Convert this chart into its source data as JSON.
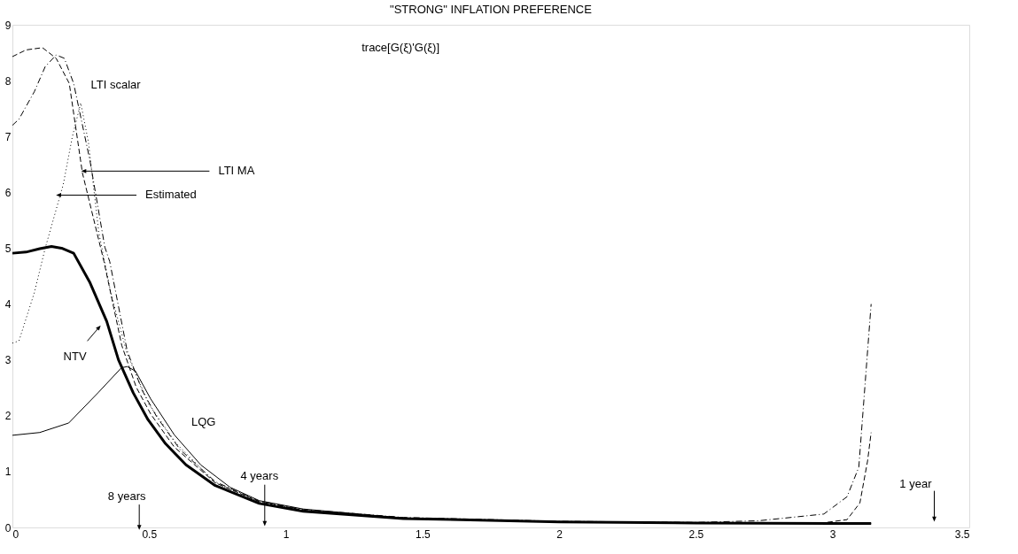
{
  "chart_data": {
    "type": "line",
    "title": "\"STRONG\" INFLATION PREFERENCE",
    "xlim": [
      0,
      3.5
    ],
    "ylim": [
      0,
      9
    ],
    "xticks": [
      0,
      0.5,
      1,
      1.5,
      2,
      2.5,
      3,
      3.5
    ],
    "yticks": [
      0,
      1,
      2,
      3,
      4,
      5,
      6,
      7,
      8,
      9
    ],
    "grid": false,
    "marker": "none",
    "series": [
      {
        "color": "#000000",
        "line_style": "dashed",
        "x": [
          0,
          0.05,
          0.11,
          0.16,
          0.208,
          0.256,
          0.335,
          0.4,
          0.453,
          0.506,
          0.592,
          0.742,
          0.903,
          1.064,
          1.43,
          2.0,
          2.5,
          2.947,
          3.053,
          3.1,
          3.128,
          3.141
        ],
        "values": [
          8.43,
          8.55,
          8.59,
          8.4,
          7.95,
          6.35,
          4.76,
          3.26,
          2.51,
          2.03,
          1.44,
          0.8,
          0.46,
          0.31,
          0.17,
          0.1,
          0.08,
          0.07,
          0.14,
          0.44,
          1.19,
          1.7
        ]
      },
      {
        "color": "#000000",
        "line_style": "dashdot",
        "x": [
          0,
          0.024,
          0.08,
          0.12,
          0.16,
          0.19,
          0.224,
          0.284,
          0.338,
          0.356,
          0.42,
          0.474,
          0.528,
          0.614,
          0.742,
          0.903,
          1.064,
          1.43,
          2.0,
          2.5,
          2.73,
          2.968,
          3.053,
          3.096,
          3.141
        ],
        "values": [
          7.2,
          7.31,
          7.8,
          8.25,
          8.46,
          8.4,
          7.95,
          6.56,
          5.02,
          4.76,
          3.16,
          2.46,
          1.98,
          1.39,
          0.82,
          0.47,
          0.32,
          0.18,
          0.11,
          0.09,
          0.12,
          0.24,
          0.55,
          1.08,
          4.0
        ]
      },
      {
        "color": "#000000",
        "line_style": "dotted",
        "x": [
          0,
          0.024,
          0.08,
          0.12,
          0.186,
          0.219,
          0.25,
          0.278,
          0.316,
          0.36,
          0.42,
          0.5,
          0.6,
          0.742,
          0.903,
          1.064,
          1.43,
          2.0,
          2.5,
          3.0,
          3.141
        ],
        "values": [
          3.3,
          3.34,
          4.2,
          5.0,
          6.14,
          6.99,
          7.6,
          6.9,
          5.28,
          4.2,
          3.1,
          2.2,
          1.5,
          0.8,
          0.46,
          0.31,
          0.17,
          0.1,
          0.08,
          0.07,
          0.07
        ]
      },
      {
        "color": "#000000",
        "line_style": "solid",
        "x": [
          0,
          0.05,
          0.1,
          0.143,
          0.18,
          0.224,
          0.284,
          0.345,
          0.388,
          0.442,
          0.496,
          0.56,
          0.635,
          0.742,
          0.903,
          1.064,
          1.43,
          2.0,
          2.5,
          3.0,
          3.141
        ],
        "values": [
          4.91,
          4.93,
          4.99,
          5.03,
          5.0,
          4.91,
          4.38,
          3.69,
          3.0,
          2.41,
          1.93,
          1.5,
          1.12,
          0.75,
          0.43,
          0.29,
          0.16,
          0.1,
          0.08,
          0.07,
          0.07
        ]
      },
      {
        "color": "#000000",
        "line_style": "solid",
        "x": [
          0,
          0.1,
          0.206,
          0.313,
          0.399,
          0.42,
          0.45,
          0.506,
          0.592,
          0.689,
          0.796,
          0.903,
          1.064,
          1.43,
          2.0,
          2.5,
          3.0,
          3.141
        ],
        "values": [
          1.65,
          1.7,
          1.87,
          2.41,
          2.86,
          2.88,
          2.8,
          2.3,
          1.66,
          1.12,
          0.72,
          0.48,
          0.33,
          0.17,
          0.1,
          0.08,
          0.07,
          0.07
        ]
      }
    ],
    "annotations": [
      "trace[G(ξ)'G(ξ)]",
      "LTI scalar",
      {
        "text": "LTI MA",
        "x": 0.267,
        "y": 6.38
      },
      {
        "text": "Estimated",
        "x": 0.175,
        "y": 5.95
      },
      {
        "text": "NTV",
        "x": 0.313,
        "y": 3.56
      },
      "LQG",
      {
        "text": "4 years",
        "x": 0.923,
        "y": 0.1
      },
      {
        "text": "8 years",
        "x": 0.464,
        "y": 0.03
      },
      {
        "text": "1 year",
        "x": 3.372,
        "y": 0.18
      }
    ]
  }
}
